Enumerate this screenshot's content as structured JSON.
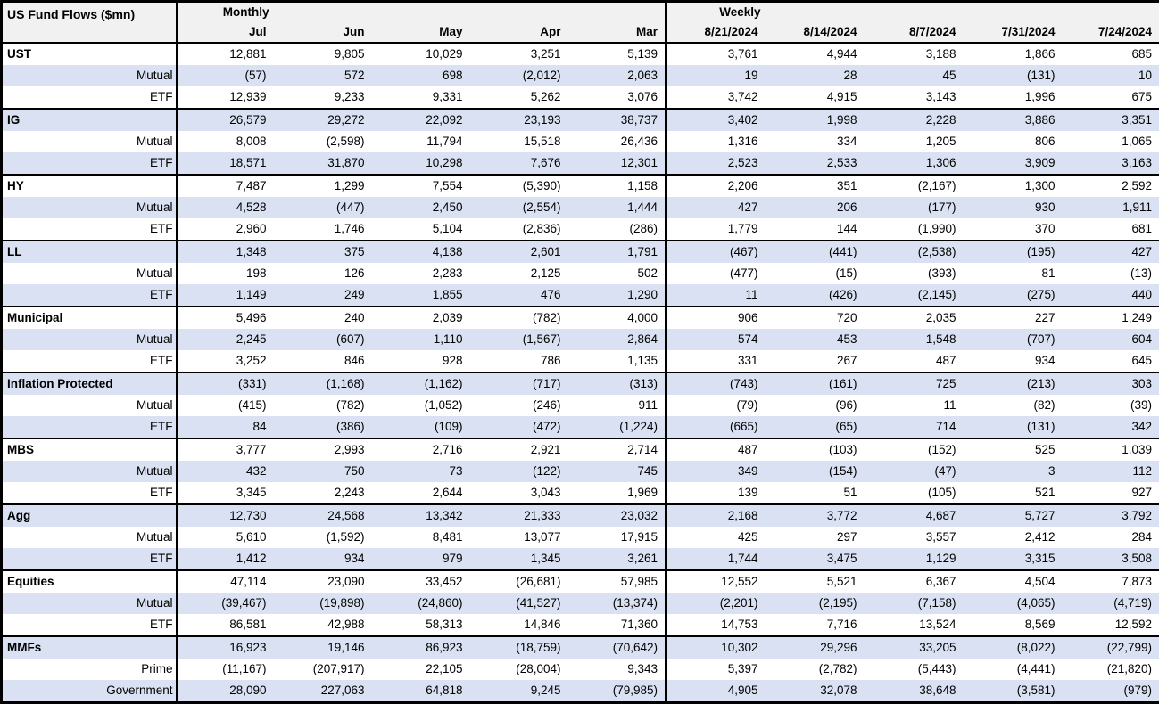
{
  "title": "US Fund Flows ($mn)",
  "header": {
    "monthly_label": "Monthly",
    "weekly_label": "Weekly",
    "monthly_columns": [
      "Jul",
      "Jun",
      "May",
      "Apr",
      "Mar"
    ],
    "weekly_columns": [
      "8/21/2024",
      "8/14/2024",
      "8/7/2024",
      "7/31/2024",
      "7/24/2024"
    ]
  },
  "colors": {
    "row_shade": "#d9e1f2",
    "header_bg": "#f1f1f1",
    "border": "#000000",
    "row_plain": "#ffffff"
  },
  "chart_data": {
    "type": "table",
    "title": "US Fund Flows ($mn)",
    "units": "$mn",
    "column_groups": [
      {
        "label": "Monthly",
        "columns": [
          "Jul",
          "Jun",
          "May",
          "Apr",
          "Mar"
        ]
      },
      {
        "label": "Weekly",
        "columns": [
          "8/21/2024",
          "8/14/2024",
          "8/7/2024",
          "7/31/2024",
          "7/24/2024"
        ]
      }
    ],
    "groups": [
      {
        "name": "UST",
        "rows": [
          {
            "label": "UST",
            "monthly": [
              "12,881",
              "9,805",
              "10,029",
              "3,251",
              "5,139"
            ],
            "weekly": [
              "3,761",
              "4,944",
              "3,188",
              "1,866",
              "685"
            ]
          },
          {
            "label": "Mutual",
            "monthly": [
              "(57)",
              "572",
              "698",
              "(2,012)",
              "2,063"
            ],
            "weekly": [
              "19",
              "28",
              "45",
              "(131)",
              "10"
            ]
          },
          {
            "label": "ETF",
            "monthly": [
              "12,939",
              "9,233",
              "9,331",
              "5,262",
              "3,076"
            ],
            "weekly": [
              "3,742",
              "4,915",
              "3,143",
              "1,996",
              "675"
            ]
          }
        ]
      },
      {
        "name": "IG",
        "rows": [
          {
            "label": "IG",
            "monthly": [
              "26,579",
              "29,272",
              "22,092",
              "23,193",
              "38,737"
            ],
            "weekly": [
              "3,402",
              "1,998",
              "2,228",
              "3,886",
              "3,351"
            ]
          },
          {
            "label": "Mutual",
            "monthly": [
              "8,008",
              "(2,598)",
              "11,794",
              "15,518",
              "26,436"
            ],
            "weekly": [
              "1,316",
              "334",
              "1,205",
              "806",
              "1,065"
            ]
          },
          {
            "label": "ETF",
            "monthly": [
              "18,571",
              "31,870",
              "10,298",
              "7,676",
              "12,301"
            ],
            "weekly": [
              "2,523",
              "2,533",
              "1,306",
              "3,909",
              "3,163"
            ]
          }
        ]
      },
      {
        "name": "HY",
        "rows": [
          {
            "label": "HY",
            "monthly": [
              "7,487",
              "1,299",
              "7,554",
              "(5,390)",
              "1,158"
            ],
            "weekly": [
              "2,206",
              "351",
              "(2,167)",
              "1,300",
              "2,592"
            ]
          },
          {
            "label": "Mutual",
            "monthly": [
              "4,528",
              "(447)",
              "2,450",
              "(2,554)",
              "1,444"
            ],
            "weekly": [
              "427",
              "206",
              "(177)",
              "930",
              "1,911"
            ]
          },
          {
            "label": "ETF",
            "monthly": [
              "2,960",
              "1,746",
              "5,104",
              "(2,836)",
              "(286)"
            ],
            "weekly": [
              "1,779",
              "144",
              "(1,990)",
              "370",
              "681"
            ]
          }
        ]
      },
      {
        "name": "LL",
        "rows": [
          {
            "label": "LL",
            "monthly": [
              "1,348",
              "375",
              "4,138",
              "2,601",
              "1,791"
            ],
            "weekly": [
              "(467)",
              "(441)",
              "(2,538)",
              "(195)",
              "427"
            ]
          },
          {
            "label": "Mutual",
            "monthly": [
              "198",
              "126",
              "2,283",
              "2,125",
              "502"
            ],
            "weekly": [
              "(477)",
              "(15)",
              "(393)",
              "81",
              "(13)"
            ]
          },
          {
            "label": "ETF",
            "monthly": [
              "1,149",
              "249",
              "1,855",
              "476",
              "1,290"
            ],
            "weekly": [
              "11",
              "(426)",
              "(2,145)",
              "(275)",
              "440"
            ]
          }
        ]
      },
      {
        "name": "Municipal",
        "rows": [
          {
            "label": "Municipal",
            "monthly": [
              "5,496",
              "240",
              "2,039",
              "(782)",
              "4,000"
            ],
            "weekly": [
              "906",
              "720",
              "2,035",
              "227",
              "1,249"
            ]
          },
          {
            "label": "Mutual",
            "monthly": [
              "2,245",
              "(607)",
              "1,110",
              "(1,567)",
              "2,864"
            ],
            "weekly": [
              "574",
              "453",
              "1,548",
              "(707)",
              "604"
            ]
          },
          {
            "label": "ETF",
            "monthly": [
              "3,252",
              "846",
              "928",
              "786",
              "1,135"
            ],
            "weekly": [
              "331",
              "267",
              "487",
              "934",
              "645"
            ]
          }
        ]
      },
      {
        "name": "Inflation Protected",
        "rows": [
          {
            "label": "Inflation Protected",
            "monthly": [
              "(331)",
              "(1,168)",
              "(1,162)",
              "(717)",
              "(313)"
            ],
            "weekly": [
              "(743)",
              "(161)",
              "725",
              "(213)",
              "303"
            ]
          },
          {
            "label": "Mutual",
            "monthly": [
              "(415)",
              "(782)",
              "(1,052)",
              "(246)",
              "911"
            ],
            "weekly": [
              "(79)",
              "(96)",
              "11",
              "(82)",
              "(39)"
            ]
          },
          {
            "label": "ETF",
            "monthly": [
              "84",
              "(386)",
              "(109)",
              "(472)",
              "(1,224)"
            ],
            "weekly": [
              "(665)",
              "(65)",
              "714",
              "(131)",
              "342"
            ]
          }
        ]
      },
      {
        "name": "MBS",
        "rows": [
          {
            "label": "MBS",
            "monthly": [
              "3,777",
              "2,993",
              "2,716",
              "2,921",
              "2,714"
            ],
            "weekly": [
              "487",
              "(103)",
              "(152)",
              "525",
              "1,039"
            ]
          },
          {
            "label": "Mutual",
            "monthly": [
              "432",
              "750",
              "73",
              "(122)",
              "745"
            ],
            "weekly": [
              "349",
              "(154)",
              "(47)",
              "3",
              "112"
            ]
          },
          {
            "label": "ETF",
            "monthly": [
              "3,345",
              "2,243",
              "2,644",
              "3,043",
              "1,969"
            ],
            "weekly": [
              "139",
              "51",
              "(105)",
              "521",
              "927"
            ]
          }
        ]
      },
      {
        "name": "Agg",
        "rows": [
          {
            "label": "Agg",
            "monthly": [
              "12,730",
              "24,568",
              "13,342",
              "21,333",
              "23,032"
            ],
            "weekly": [
              "2,168",
              "3,772",
              "4,687",
              "5,727",
              "3,792"
            ]
          },
          {
            "label": "Mutual",
            "monthly": [
              "5,610",
              "(1,592)",
              "8,481",
              "13,077",
              "17,915"
            ],
            "weekly": [
              "425",
              "297",
              "3,557",
              "2,412",
              "284"
            ]
          },
          {
            "label": "ETF",
            "monthly": [
              "1,412",
              "934",
              "979",
              "1,345",
              "3,261"
            ],
            "weekly": [
              "1,744",
              "3,475",
              "1,129",
              "3,315",
              "3,508"
            ]
          }
        ]
      },
      {
        "name": "Equities",
        "rows": [
          {
            "label": "Equities",
            "monthly": [
              "47,114",
              "23,090",
              "33,452",
              "(26,681)",
              "57,985"
            ],
            "weekly": [
              "12,552",
              "5,521",
              "6,367",
              "4,504",
              "7,873"
            ]
          },
          {
            "label": "Mutual",
            "monthly": [
              "(39,467)",
              "(19,898)",
              "(24,860)",
              "(41,527)",
              "(13,374)"
            ],
            "weekly": [
              "(2,201)",
              "(2,195)",
              "(7,158)",
              "(4,065)",
              "(4,719)"
            ]
          },
          {
            "label": "ETF",
            "monthly": [
              "86,581",
              "42,988",
              "58,313",
              "14,846",
              "71,360"
            ],
            "weekly": [
              "14,753",
              "7,716",
              "13,524",
              "8,569",
              "12,592"
            ]
          }
        ]
      },
      {
        "name": "MMFs",
        "rows": [
          {
            "label": "MMFs",
            "monthly": [
              "16,923",
              "19,146",
              "86,923",
              "(18,759)",
              "(70,642)"
            ],
            "weekly": [
              "10,302",
              "29,296",
              "33,205",
              "(8,022)",
              "(22,799)"
            ]
          },
          {
            "label": "Prime",
            "monthly": [
              "(11,167)",
              "(207,917)",
              "22,105",
              "(28,004)",
              "9,343"
            ],
            "weekly": [
              "5,397",
              "(2,782)",
              "(5,443)",
              "(4,441)",
              "(21,820)"
            ]
          },
          {
            "label": "Government",
            "monthly": [
              "28,090",
              "227,063",
              "64,818",
              "9,245",
              "(79,985)"
            ],
            "weekly": [
              "4,905",
              "32,078",
              "38,648",
              "(3,581)",
              "(979)"
            ]
          }
        ]
      }
    ]
  }
}
